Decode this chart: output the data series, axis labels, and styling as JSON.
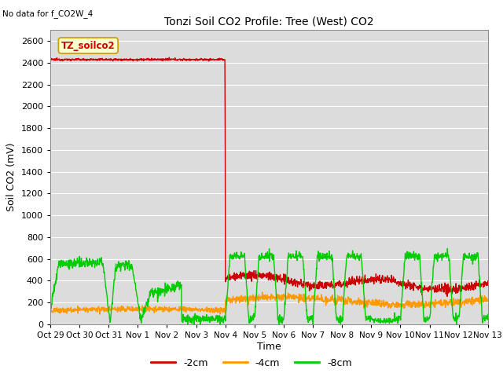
{
  "title": "Tonzi Soil CO2 Profile: Tree (West) CO2",
  "no_data_text": "No data for f_CO2W_4",
  "ylabel": "Soil CO2 (mV)",
  "xlabel": "Time",
  "legend_label": "TZ_soilco2",
  "ylim": [
    0,
    2700
  ],
  "yticks": [
    0,
    200,
    400,
    600,
    800,
    1000,
    1200,
    1400,
    1600,
    1800,
    2000,
    2200,
    2400,
    2600
  ],
  "xtick_labels": [
    "Oct 29",
    "Oct 30",
    "Oct 31",
    "Nov 1",
    "Nov 2",
    "Nov 3",
    "Nov 4",
    "Nov 5",
    "Nov 6",
    "Nov 7",
    "Nov 8",
    "Nov 9",
    "Nov 10",
    "Nov 11",
    "Nov 12",
    "Nov 13"
  ],
  "color_2cm": "#cc0000",
  "color_4cm": "#ff9900",
  "color_8cm": "#00cc00",
  "background_color": "#dcdcdc",
  "legend_box_color": "#ffffcc",
  "legend_box_edge": "#cc9900",
  "line_width": 1.0,
  "figsize": [
    6.4,
    4.8
  ],
  "dpi": 100
}
